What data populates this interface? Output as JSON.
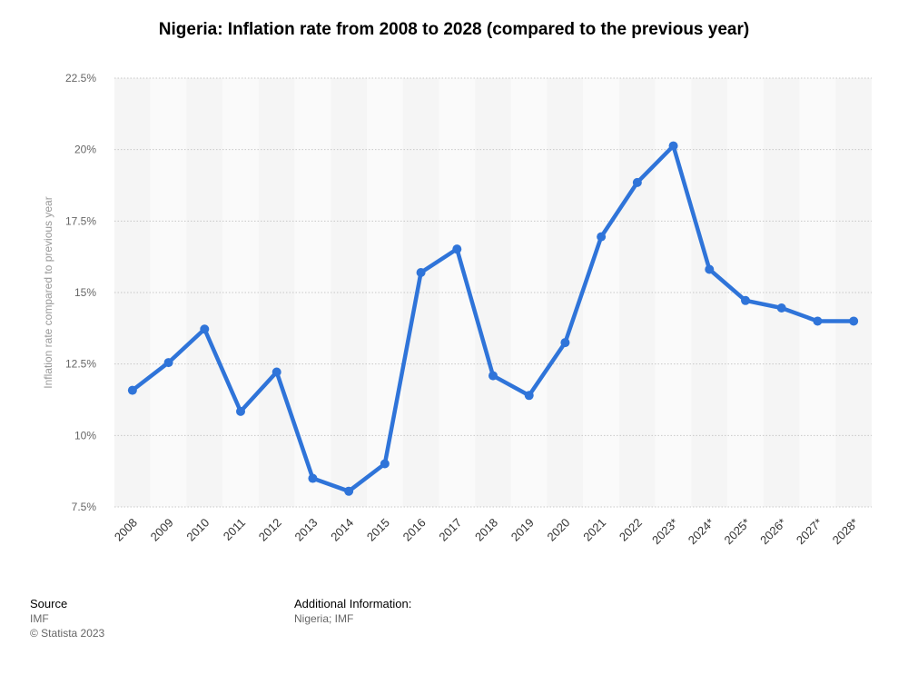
{
  "title": "Nigeria: Inflation rate from 2008 to 2028 (compared to the previous year)",
  "chart_data": {
    "type": "line",
    "title": "Nigeria: Inflation rate from 2008 to 2028 (compared to the previous year)",
    "ylabel": "Inflation rate compared to previous year",
    "xlabel": "",
    "ylim": [
      7.5,
      22.5
    ],
    "yticks": [
      "7.5%",
      "10%",
      "12.5%",
      "15%",
      "17.5%",
      "20%",
      "22.5%"
    ],
    "ytick_values": [
      7.5,
      10,
      12.5,
      15,
      17.5,
      20,
      22.5
    ],
    "categories": [
      "2008",
      "2009",
      "2010",
      "2011",
      "2012",
      "2013",
      "2014",
      "2015",
      "2016",
      "2017",
      "2018",
      "2019",
      "2020",
      "2021",
      "2022",
      "2023*",
      "2024*",
      "2025*",
      "2026*",
      "2027*",
      "2028*"
    ],
    "series": [
      {
        "values": [
          11.58,
          12.55,
          13.72,
          10.84,
          12.22,
          8.5,
          8.05,
          9.01,
          15.7,
          16.52,
          12.09,
          11.4,
          13.25,
          16.95,
          18.85,
          20.13,
          15.81,
          14.72,
          14.46,
          14.0,
          14.0
        ]
      }
    ],
    "colors": {
      "line": "#2f74d9",
      "band_light": "#f5f5f5",
      "band_alt": "#fafafa",
      "grid": "#c8c8c8"
    },
    "grid": true
  },
  "footer": {
    "source_heading": "Source",
    "source_lines": [
      "IMF",
      "© Statista 2023"
    ],
    "additional_heading": "Additional Information:",
    "additional_text": "Nigeria; IMF"
  }
}
